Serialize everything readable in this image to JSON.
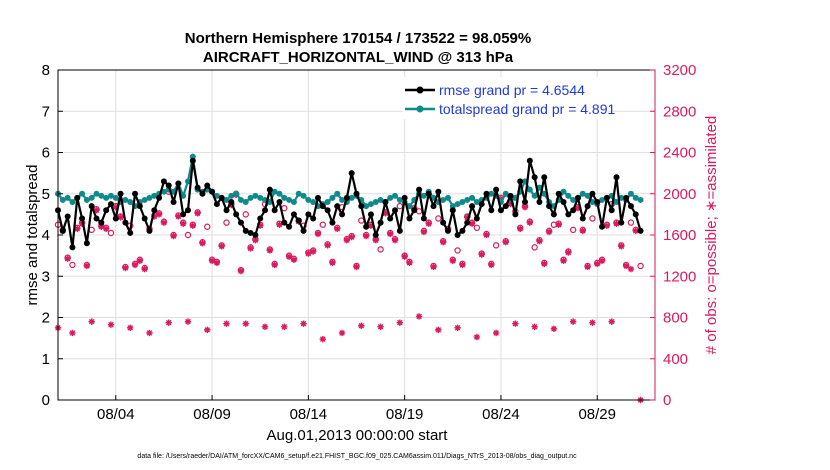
{
  "chart_data": {
    "type": "line",
    "title_line1": "Northern Hemisphere 170154 / 173522 = 98.059%",
    "title_line2": "AIRCRAFT_HORIZONTAL_WIND @ 313 hPa",
    "ylabel_left": "rmse and totalspread",
    "ylabel_right": "# of obs: o=possible; ∗=assimilated",
    "xlabel": "Aug.01,2013 00:00:00 start",
    "x_ticks": [
      {
        "day": 4,
        "label": "08/04"
      },
      {
        "day": 9,
        "label": "08/09"
      },
      {
        "day": 14,
        "label": "08/14"
      },
      {
        "day": 19,
        "label": "08/19"
      },
      {
        "day": 24,
        "label": "08/24"
      },
      {
        "day": 29,
        "label": "08/29"
      }
    ],
    "xlim": [
      1,
      32
    ],
    "ylim_left": [
      0,
      8
    ],
    "yticks_left": [
      "0",
      "1",
      "2",
      "3",
      "4",
      "5",
      "6",
      "7",
      "8"
    ],
    "ylim_right": [
      0,
      3200
    ],
    "yticks_right": [
      "0",
      "400",
      "800",
      "1200",
      "1600",
      "2000",
      "2400",
      "2800",
      "3200"
    ],
    "colors": {
      "rmse": "#000000",
      "spread": "#0f8a8a",
      "obs": "#d81b60",
      "legend_text": "#1f3bd6",
      "grid": "#dfdfdf"
    },
    "legend": [
      {
        "name": "rmse grand pr = 4.6544",
        "series": "rmse"
      },
      {
        "name": "totalspread grand pr = 4.891",
        "series": "spread"
      }
    ],
    "series": [
      {
        "name": "rmse",
        "x_start": 1.0,
        "x_step": 0.25,
        "values": [
          4.6,
          4.1,
          4.45,
          3.7,
          4.9,
          4.4,
          3.8,
          4.7,
          4.4,
          4.3,
          4.6,
          4.75,
          4.4,
          5.0,
          4.3,
          4.05,
          5.0,
          4.7,
          4.4,
          4.1,
          4.6,
          4.9,
          5.3,
          5.2,
          4.8,
          5.25,
          4.5,
          4.6,
          5.8,
          5.15,
          5.0,
          5.2,
          5.05,
          4.75,
          4.9,
          4.6,
          4.8,
          4.5,
          4.3,
          4.1,
          4.05,
          4.0,
          4.4,
          4.6,
          5.1,
          4.6,
          4.8,
          4.3,
          4.2,
          4.5,
          4.35,
          4.1,
          4.5,
          4.4,
          4.9,
          4.7,
          4.6,
          4.3,
          4.7,
          4.5,
          4.9,
          5.5,
          5.0,
          4.7,
          4.2,
          4.5,
          4.0,
          4.3,
          4.8,
          4.4,
          4.6,
          4.1,
          4.9,
          4.4,
          4.6,
          5.1,
          4.4,
          5.0,
          4.7,
          5.05,
          4.3,
          4.1,
          4.6,
          4.0,
          4.1,
          4.3,
          4.7,
          4.4,
          4.75,
          5.0,
          4.6,
          5.1,
          4.6,
          4.7,
          4.95,
          4.5,
          5.3,
          4.8,
          5.8,
          5.4,
          4.8,
          5.4,
          4.7,
          4.5,
          5.0,
          4.8,
          4.5,
          4.6,
          4.9,
          4.4,
          4.7,
          5.0,
          4.8,
          4.2,
          4.9,
          4.6,
          5.4,
          4.3,
          4.9,
          4.7,
          4.5,
          4.1
        ]
      },
      {
        "name": "totalspread",
        "x_start": 1.0,
        "x_step": 0.25,
        "values": [
          5.0,
          4.85,
          4.9,
          4.8,
          4.9,
          5.0,
          4.85,
          4.9,
          5.0,
          4.95,
          4.9,
          4.95,
          4.9,
          4.8,
          4.85,
          4.8,
          4.7,
          4.8,
          4.85,
          4.9,
          4.95,
          5.0,
          5.05,
          5.1,
          5.05,
          5.25,
          4.95,
          5.3,
          5.9,
          5.1,
          5.05,
          5.1,
          5.05,
          4.95,
          4.9,
          4.85,
          4.95,
          5.0,
          4.85,
          4.8,
          4.9,
          4.95,
          4.9,
          4.85,
          4.8,
          5.05,
          5.0,
          4.9,
          4.85,
          4.8,
          5.0,
          4.95,
          4.85,
          4.8,
          4.7,
          4.75,
          4.8,
          4.9,
          5.0,
          4.85,
          4.8,
          4.9,
          4.95,
          4.85,
          4.7,
          4.75,
          4.8,
          4.85,
          4.8,
          4.9,
          4.95,
          4.85,
          4.8,
          4.7,
          4.85,
          5.0,
          4.95,
          5.05,
          4.9,
          4.8,
          4.85,
          4.9,
          4.7,
          4.75,
          4.8,
          4.85,
          4.9,
          4.8,
          4.85,
          4.9,
          5.0,
          4.95,
          4.8,
          5.0,
          4.85,
          4.9,
          5.05,
          5.3,
          5.1,
          4.95,
          5.15,
          5.0,
          4.8,
          4.7,
          4.85,
          5.05,
          4.95,
          4.85,
          4.9,
          5.0,
          4.95,
          4.8,
          4.75,
          4.85,
          4.9,
          4.95,
          4.8,
          4.9,
          4.85,
          5.0,
          4.9,
          4.85
        ]
      },
      {
        "name": "obs possible (o)",
        "x_start": 1.0,
        "x_step": 0.25,
        "values": [
          1700,
          1650,
          1380,
          1310,
          1670,
          1720,
          1310,
          1650,
          1850,
          1690,
          1670,
          1620,
          1880,
          1780,
          1290,
          1690,
          1320,
          1360,
          1280,
          1660,
          1790,
          1810,
          1730,
          2020,
          1600,
          1790,
          1720,
          1600,
          1700,
          1820,
          1530,
          1680,
          1360,
          1340,
          1500,
          1720,
          1900,
          2000,
          1260,
          1800,
          1480,
          1560,
          1700,
          1900,
          1460,
          1320,
          1710,
          1860,
          1400,
          1370,
          1740,
          1690,
          1430,
          1450,
          1620,
          1700,
          1510,
          1340,
          1670,
          1870,
          1560,
          1590,
          1300,
          1740,
          1600,
          1700,
          1560,
          1460,
          1820,
          1620,
          1560,
          1880,
          1400,
          1340,
          1860,
          1830,
          1640,
          1720,
          1300,
          1760,
          1540,
          1660,
          1360,
          1450,
          1320,
          1780,
          1720,
          1670,
          1420,
          1610,
          1320,
          1500,
          1960,
          1540,
          1910,
          1830,
          1670,
          1880,
          1730,
          1480,
          1550,
          1330,
          1640,
          1700,
          1710,
          1360,
          1440,
          1650,
          1870,
          1650,
          1300,
          1760,
          1330,
          1360,
          1700,
          1900,
          1720,
          1500,
          1310,
          1720,
          1650,
          1300
        ]
      },
      {
        "name": "obs assimilated (*)",
        "x_start": 1.0,
        "x_step": 0.25,
        "values": [
          700,
          1640,
          1370,
          650,
          1660,
          1710,
          1300,
          760,
          1840,
          1680,
          1660,
          730,
          1870,
          1770,
          1280,
          700,
          1310,
          1350,
          1270,
          650,
          1780,
          1800,
          1720,
          750,
          1590,
          1780,
          1710,
          760,
          1690,
          1810,
          1520,
          680,
          1350,
          1330,
          1490,
          740,
          1890,
          1990,
          1250,
          740,
          1470,
          1550,
          1690,
          710,
          1450,
          1310,
          1700,
          710,
          1390,
          1360,
          1730,
          740,
          1420,
          1440,
          1610,
          590,
          1500,
          1330,
          1660,
          650,
          1550,
          1580,
          1290,
          720,
          1590,
          1690,
          1550,
          710,
          1810,
          1610,
          1550,
          750,
          1390,
          1330,
          1850,
          810,
          1630,
          1710,
          1290,
          680,
          1530,
          1650,
          1350,
          700,
          1310,
          1770,
          1710,
          610,
          1410,
          1600,
          1310,
          650,
          1950,
          1530,
          1900,
          740,
          1660,
          1870,
          1720,
          710,
          1540,
          1320,
          1630,
          690,
          1700,
          1350,
          1430,
          760,
          1860,
          1640,
          1290,
          750,
          1320,
          1350,
          1690,
          760,
          1710,
          1490,
          1300,
          1270,
          1640,
          0
        ]
      }
    ],
    "footnote": "data file: /Users/raeder/DAI/ATM_forcXX/CAM6_setup/f.e21.FHIST_BGC.f09_025.CAM6assim.011/Diags_NTrS_2013-08/obs_diag_output.nc"
  }
}
